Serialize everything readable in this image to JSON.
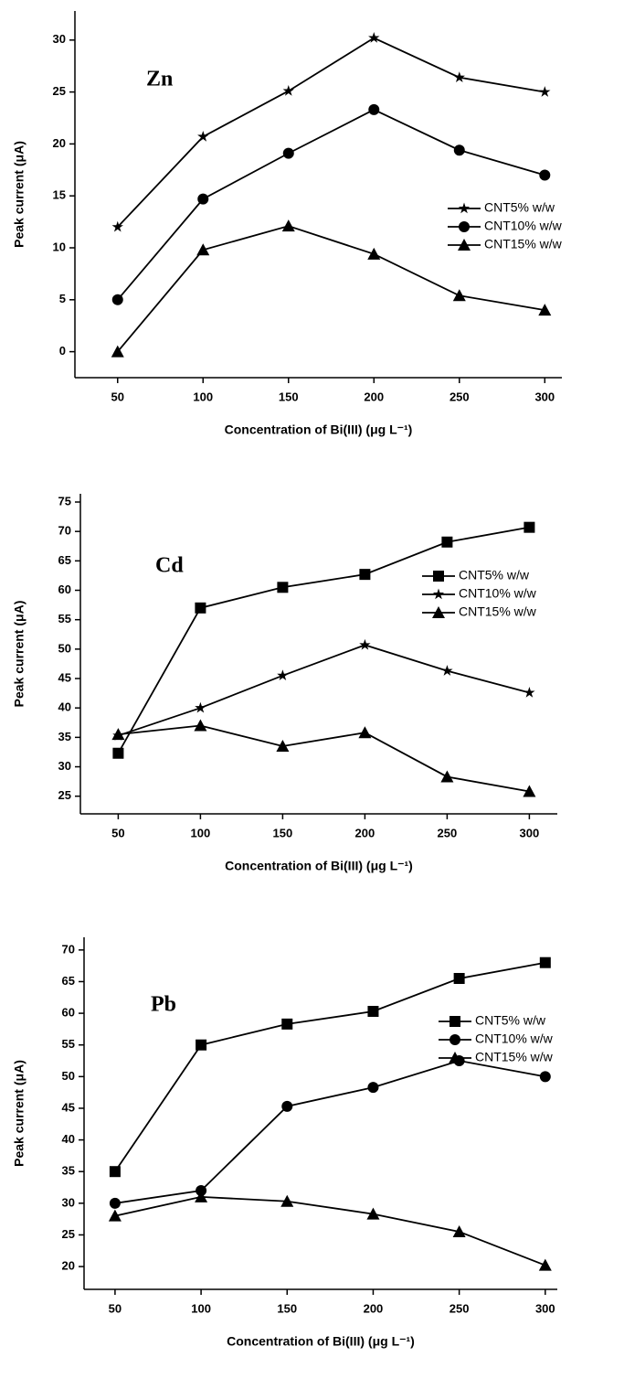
{
  "chart_data": [
    {
      "type": "line",
      "annotation": "Zn",
      "x_label": "Concentration of Bi(III) (μg L⁻¹)",
      "y_label": "Peak current (μA)",
      "x": [
        50,
        100,
        150,
        200,
        250,
        300
      ],
      "xlim": [
        25,
        310
      ],
      "xticks": [
        50,
        100,
        150,
        200,
        250,
        300
      ],
      "ylim": [
        -2.5,
        32.8
      ],
      "yticks": [
        0,
        5,
        10,
        15,
        20,
        25,
        30
      ],
      "grid": false,
      "series": [
        {
          "name": "CNT5% w/w",
          "color": "#000000",
          "marker": "star",
          "values": [
            12,
            20.7,
            25.1,
            30.2,
            26.4,
            25
          ]
        },
        {
          "name": "CNT10% w/w",
          "color": "#000000",
          "marker": "circle",
          "values": [
            5,
            14.7,
            19.1,
            23.3,
            19.4,
            17
          ]
        },
        {
          "name": "CNT15% w/w",
          "color": "#000000",
          "marker": "triangle",
          "values": [
            0,
            9.8,
            12.1,
            9.4,
            5.4,
            4
          ]
        }
      ]
    },
    {
      "type": "line",
      "annotation": "Cd",
      "x_label": "Concentration of Bi(III) (μg L⁻¹)",
      "y_label": "Peak current (μA)",
      "x": [
        50,
        100,
        150,
        200,
        250,
        300
      ],
      "xlim": [
        27,
        317
      ],
      "xticks": [
        50,
        100,
        150,
        200,
        250,
        300
      ],
      "ylim": [
        22,
        76.4
      ],
      "yticks": [
        25,
        30,
        35,
        40,
        45,
        50,
        55,
        60,
        65,
        70,
        75
      ],
      "grid": false,
      "series": [
        {
          "name": "CNT5% w/w",
          "color": "#000000",
          "marker": "square",
          "values": [
            32.3,
            57,
            60.5,
            62.7,
            68.2,
            70.7
          ]
        },
        {
          "name": "CNT10% w/w",
          "color": "#000000",
          "marker": "star",
          "values": [
            35.3,
            40,
            45.5,
            50.7,
            46.3,
            42.6
          ]
        },
        {
          "name": "CNT15% w/w",
          "color": "#000000",
          "marker": "triangle",
          "values": [
            35.5,
            37,
            33.5,
            35.8,
            28.3,
            25.8
          ]
        }
      ]
    },
    {
      "type": "line",
      "annotation": "Pb",
      "x_label": "Concentration of Bi(III) (μg L⁻¹)",
      "y_label": "Peak current (μA)",
      "x": [
        50,
        100,
        150,
        200,
        250,
        300
      ],
      "xlim": [
        32,
        307
      ],
      "xticks": [
        50,
        100,
        150,
        200,
        250,
        300
      ],
      "ylim": [
        16.4,
        72
      ],
      "yticks": [
        20,
        25,
        30,
        35,
        40,
        45,
        50,
        55,
        60,
        65,
        70
      ],
      "grid": false,
      "series": [
        {
          "name": "CNT5% w/w",
          "color": "#000000",
          "marker": "square",
          "values": [
            35,
            55,
            58.3,
            60.3,
            65.5,
            68
          ]
        },
        {
          "name": "CNT10% w/w",
          "color": "#000000",
          "marker": "circle",
          "values": [
            30,
            32,
            45.3,
            48.3,
            52.5,
            50
          ]
        },
        {
          "name": "CNT15% w/w",
          "color": "#000000",
          "marker": "triangle",
          "values": [
            28,
            31,
            30.3,
            28.3,
            25.5,
            20.2
          ]
        }
      ]
    }
  ]
}
